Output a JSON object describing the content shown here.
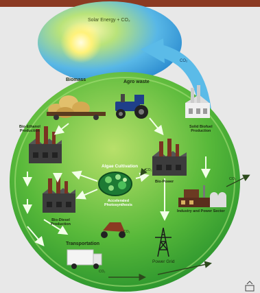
{
  "labels": {
    "solar": "Solar Energy + CO₂",
    "co2_arrow": "CO₂",
    "biomass": "Biomass",
    "agro_waste": "Agro waste",
    "bio_ethanol": "Bio-Ethanol\nProduction",
    "solid_biofuel": "Solid Biofuel\nProduction",
    "algae": "Algae Cultivation",
    "co2_algae": "CO₂",
    "accelerated": "Accelerated\nPhotosynthesis",
    "bio_power": "Bio-Power",
    "co2_right": "CO₂",
    "industry": "Industry and Power Sector",
    "bio_diesel": "Bio-Diesel\nProduction",
    "co2_scooter": "CO₂",
    "transportation": "Transportation",
    "power_grid": "Power Grid",
    "co2_bottom": "CO₂"
  },
  "colors": {
    "top_bar": "#8b3a22",
    "sky_arc": "#2f9be0",
    "green_circle": "#3cae2c",
    "text_dark": "#1b2a12"
  }
}
